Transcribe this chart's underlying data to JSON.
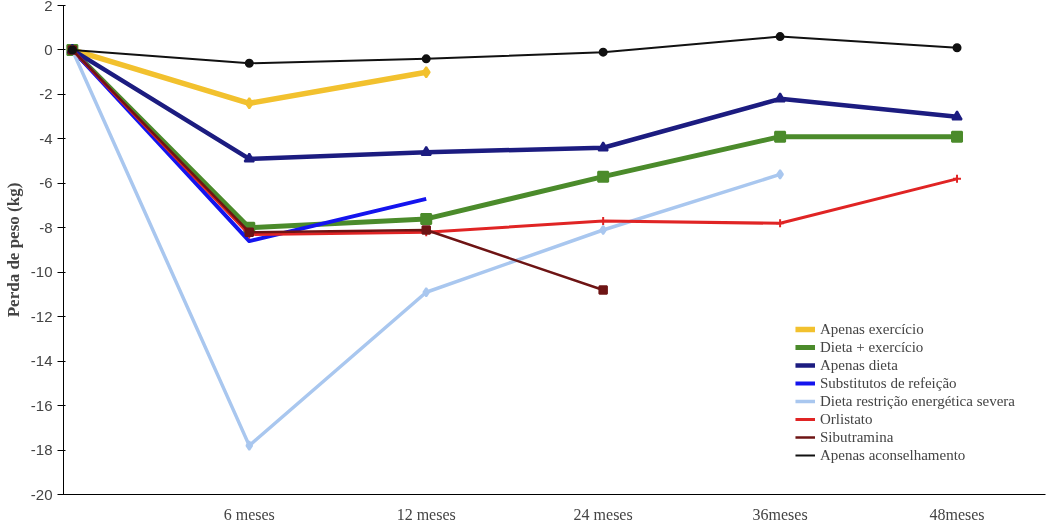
{
  "chart_data": {
    "type": "line",
    "ylabel": "Perda de peso (kg)",
    "categories": [
      null,
      "6 meses",
      "12 meses",
      "24 meses",
      "36meses",
      "48meses"
    ],
    "ylim": [
      -20,
      2
    ],
    "yticks": [
      -20,
      -18,
      -16,
      -14,
      -12,
      -10,
      -8,
      -6,
      -4,
      -2,
      0,
      2
    ],
    "grid": false,
    "legend": "bottom right",
    "line_style": "solid",
    "series": [
      {
        "name": "Apenas exercício",
        "color": "#f2c12e",
        "marker": "diamond",
        "values": [
          0,
          -2.4,
          -1.0,
          null,
          null,
          null
        ]
      },
      {
        "name": "Dieta + exercício",
        "color": "#4b8b2b",
        "marker": "square",
        "values": [
          0,
          -8.0,
          -7.6,
          -5.7,
          -3.9,
          -3.9
        ]
      },
      {
        "name": "Apenas dieta",
        "color": "#1c1c80",
        "marker": "triangle",
        "values": [
          0,
          -4.9,
          -4.6,
          -4.4,
          -2.2,
          -3.0
        ]
      },
      {
        "name": "Substitutos de refeição",
        "color": "#1414ee",
        "marker": "none",
        "values": [
          0,
          -8.6,
          -6.7,
          null,
          null,
          null
        ]
      },
      {
        "name": "Dieta restrição energética severa",
        "color": "#a9c7ef",
        "marker": "diamond",
        "values": [
          0,
          -17.8,
          -10.9,
          -8.1,
          -5.6,
          null
        ]
      },
      {
        "name": "Orlistato",
        "color": "#e02424",
        "marker": "cross",
        "values": [
          0,
          -8.3,
          -8.2,
          -7.7,
          -7.8,
          -5.8
        ]
      },
      {
        "name": "Sibutramina",
        "color": "#6e1414",
        "marker": "square",
        "values": [
          0,
          -8.2,
          -8.1,
          -10.8,
          null,
          null
        ]
      },
      {
        "name": "Apenas aconselhamento",
        "color": "#111111",
        "marker": "circle",
        "values": [
          0,
          -0.6,
          -0.4,
          -0.1,
          0.6,
          0.1
        ]
      }
    ]
  }
}
